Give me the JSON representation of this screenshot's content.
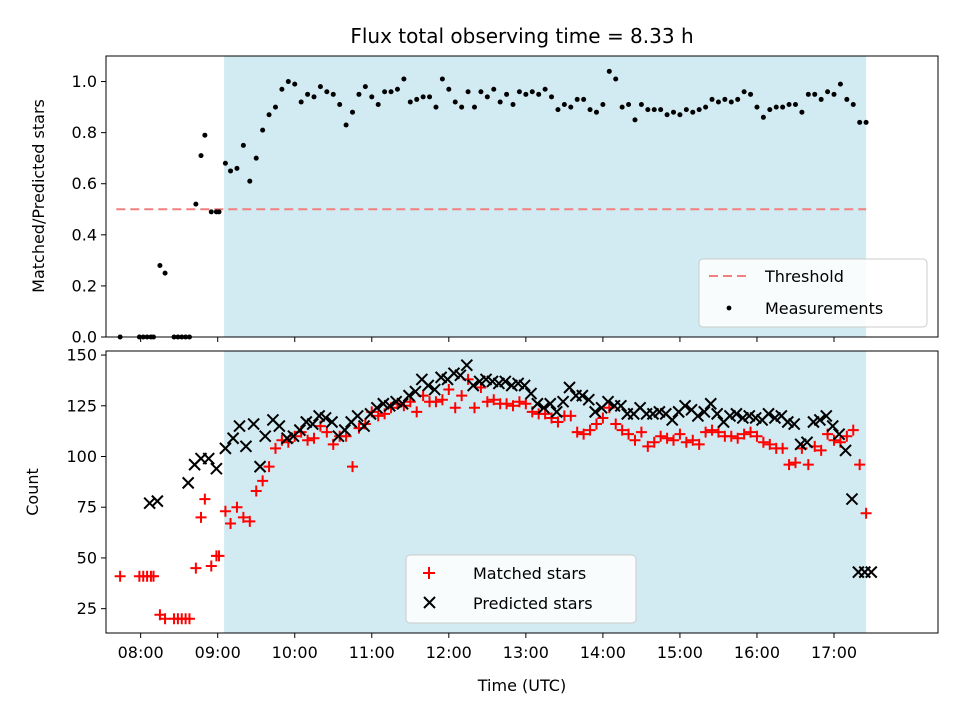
{
  "title": "Flux total observing time = 8.33 h",
  "xlabel": "Time (UTC)",
  "chart_data": [
    {
      "type": "scatter",
      "ylabel": "Matched/Predicted stars",
      "xlim": [
        "07:33",
        "18:21"
      ],
      "ylim": [
        0,
        1.1
      ],
      "yticks": [
        0.0,
        0.2,
        0.4,
        0.6,
        0.8,
        1.0
      ],
      "ytick_labels": [
        "0.0",
        "0.2",
        "0.4",
        "0.6",
        "0.8",
        "1.0"
      ],
      "grid": false,
      "legend_position": "lower right",
      "observing_window": {
        "start": "09:05",
        "end": "17:25",
        "color": "#add8e6"
      },
      "threshold": {
        "name": "Threshold",
        "value": 0.5,
        "x_range": [
          "07:41",
          "17:25"
        ],
        "color": "#f08080",
        "style": "dashed"
      },
      "series": [
        {
          "name": "Measurements",
          "color": "#000000",
          "marker": "dot",
          "x": [
            "07:44",
            "07:59",
            "08:02",
            "08:05",
            "08:08",
            "08:10",
            "08:15",
            "08:19",
            "08:26",
            "08:29",
            "08:32",
            "08:35",
            "08:38",
            "08:43",
            "08:47",
            "08:50",
            "08:55",
            "08:59",
            "09:01",
            "09:06",
            "09:10",
            "09:15",
            "09:20",
            "09:25",
            "09:30",
            "09:35",
            "09:40",
            "09:45",
            "09:50",
            "09:55",
            "10:00",
            "10:05",
            "10:10",
            "10:15",
            "10:20",
            "10:25",
            "10:30",
            "10:35",
            "10:40",
            "10:45",
            "10:50",
            "10:55",
            "11:00",
            "11:05",
            "11:10",
            "11:15",
            "11:20",
            "11:25",
            "11:30",
            "11:35",
            "11:40",
            "11:45",
            "11:50",
            "11:55",
            "12:00",
            "12:05",
            "12:10",
            "12:15",
            "12:20",
            "12:25",
            "12:30",
            "12:35",
            "12:40",
            "12:45",
            "12:50",
            "12:55",
            "13:00",
            "13:05",
            "13:10",
            "13:15",
            "13:20",
            "13:25",
            "13:30",
            "13:35",
            "13:40",
            "13:45",
            "13:50",
            "13:55",
            "14:00",
            "14:05",
            "14:10",
            "14:15",
            "14:20",
            "14:25",
            "14:30",
            "14:35",
            "14:40",
            "14:45",
            "14:50",
            "14:55",
            "15:00",
            "15:05",
            "15:10",
            "15:15",
            "15:20",
            "15:25",
            "15:30",
            "15:35",
            "15:40",
            "15:45",
            "15:50",
            "15:55",
            "16:00",
            "16:05",
            "16:10",
            "16:15",
            "16:20",
            "16:25",
            "16:30",
            "16:35",
            "16:40",
            "16:45",
            "16:50",
            "16:55",
            "17:00",
            "17:05",
            "17:10",
            "17:15",
            "17:20",
            "17:25"
          ],
          "y": [
            0.0,
            0.0,
            0.0,
            0.0,
            0.0,
            0.0,
            0.28,
            0.25,
            0.0,
            0.0,
            0.0,
            0.0,
            0.0,
            0.52,
            0.71,
            0.79,
            0.49,
            0.49,
            0.49,
            0.68,
            0.65,
            0.66,
            0.75,
            0.61,
            0.7,
            0.81,
            0.87,
            0.9,
            0.97,
            1.0,
            0.99,
            0.92,
            0.95,
            0.94,
            0.98,
            0.96,
            0.95,
            0.91,
            0.83,
            0.88,
            0.95,
            0.98,
            0.94,
            0.91,
            0.96,
            0.96,
            0.97,
            1.01,
            0.92,
            0.93,
            0.94,
            0.94,
            0.9,
            1.01,
            0.97,
            0.92,
            0.9,
            0.96,
            0.9,
            0.96,
            0.94,
            0.97,
            0.92,
            0.95,
            0.91,
            0.96,
            0.95,
            0.96,
            0.95,
            0.97,
            0.94,
            0.89,
            0.91,
            0.9,
            0.93,
            0.93,
            0.89,
            0.88,
            0.91,
            1.04,
            1.01,
            0.9,
            0.91,
            0.85,
            0.91,
            0.89,
            0.89,
            0.89,
            0.87,
            0.88,
            0.87,
            0.89,
            0.88,
            0.89,
            0.9,
            0.93,
            0.92,
            0.93,
            0.92,
            0.93,
            0.96,
            0.95,
            0.9,
            0.86,
            0.89,
            0.9,
            0.9,
            0.91,
            0.91,
            0.88,
            0.95,
            0.95,
            0.93,
            0.96,
            0.95,
            0.99,
            0.93,
            0.91,
            0.84,
            0.84
          ]
        }
      ]
    },
    {
      "type": "scatter",
      "ylabel": "Count",
      "xlim": [
        "07:33",
        "18:21"
      ],
      "ylim": [
        13,
        152
      ],
      "yticks": [
        25,
        50,
        75,
        100,
        125,
        150
      ],
      "ytick_labels": [
        "25",
        "50",
        "75",
        "100",
        "125",
        "150"
      ],
      "xticks": [
        "08:00",
        "09:00",
        "10:00",
        "11:00",
        "12:00",
        "13:00",
        "14:00",
        "15:00",
        "16:00",
        "17:00"
      ],
      "grid": false,
      "legend_position": "lower center",
      "observing_window": {
        "start": "09:05",
        "end": "17:25",
        "color": "#add8e6"
      },
      "series": [
        {
          "name": "Matched stars",
          "color": "#ff0000",
          "marker": "plus",
          "x": [
            "07:44",
            "07:59",
            "08:02",
            "08:05",
            "08:08",
            "08:10",
            "08:15",
            "08:19",
            "08:26",
            "08:29",
            "08:32",
            "08:35",
            "08:38",
            "08:43",
            "08:47",
            "08:50",
            "08:55",
            "08:59",
            "09:01",
            "09:06",
            "09:10",
            "09:15",
            "09:20",
            "09:25",
            "09:30",
            "09:35",
            "09:40",
            "09:45",
            "09:50",
            "09:55",
            "10:00",
            "10:05",
            "10:10",
            "10:15",
            "10:20",
            "10:25",
            "10:30",
            "10:35",
            "10:40",
            "10:45",
            "10:50",
            "10:55",
            "11:00",
            "11:05",
            "11:10",
            "11:15",
            "11:20",
            "11:25",
            "11:30",
            "11:35",
            "11:40",
            "11:45",
            "11:50",
            "11:55",
            "12:00",
            "12:05",
            "12:10",
            "12:15",
            "12:20",
            "12:25",
            "12:30",
            "12:35",
            "12:40",
            "12:45",
            "12:50",
            "12:55",
            "13:00",
            "13:05",
            "13:10",
            "13:15",
            "13:20",
            "13:25",
            "13:30",
            "13:35",
            "13:40",
            "13:45",
            "13:50",
            "13:55",
            "14:00",
            "14:05",
            "14:10",
            "14:15",
            "14:20",
            "14:25",
            "14:30",
            "14:35",
            "14:40",
            "14:45",
            "14:50",
            "14:55",
            "15:00",
            "15:05",
            "15:10",
            "15:15",
            "15:20",
            "15:25",
            "15:30",
            "15:35",
            "15:40",
            "15:45",
            "15:50",
            "15:55",
            "16:00",
            "16:05",
            "16:10",
            "16:15",
            "16:20",
            "16:25",
            "16:30",
            "16:35",
            "16:40",
            "16:45",
            "16:50",
            "16:55",
            "17:00",
            "17:05",
            "17:10",
            "17:15",
            "17:20",
            "17:25"
          ],
          "y": [
            41,
            41,
            41,
            41,
            41,
            41,
            22,
            20,
            20,
            20,
            20,
            20,
            20,
            45,
            70,
            79,
            46,
            51,
            51,
            73,
            67,
            75,
            70,
            68,
            83,
            88,
            95,
            104,
            108,
            107,
            110,
            112,
            108,
            109,
            115,
            112,
            106,
            110,
            110,
            95,
            114,
            116,
            122,
            120,
            121,
            124,
            126,
            125,
            127,
            122,
            130,
            127,
            127,
            128,
            133,
            124,
            130,
            138,
            124,
            134,
            127,
            128,
            126,
            126,
            125,
            127,
            126,
            122,
            121,
            121,
            119,
            117,
            120,
            120,
            112,
            111,
            113,
            116,
            119,
            124,
            116,
            113,
            111,
            108,
            112,
            105,
            107,
            110,
            109,
            108,
            111,
            107,
            108,
            106,
            112,
            113,
            112,
            110,
            110,
            109,
            111,
            112,
            110,
            107,
            106,
            104,
            104,
            96,
            97,
            104,
            96,
            105,
            103,
            111,
            108,
            107,
            110,
            113,
            96,
            72
          ]
        },
        {
          "name": "Predicted stars",
          "color": "#000000",
          "marker": "x",
          "x": [
            "08:07",
            "08:13",
            "08:37",
            "08:42",
            "08:47",
            "08:53",
            "08:59",
            "09:06",
            "09:12",
            "09:17",
            "09:22",
            "09:28",
            "09:33",
            "09:37",
            "09:43",
            "09:48",
            "09:54",
            "09:59",
            "10:04",
            "10:09",
            "10:14",
            "10:19",
            "10:24",
            "10:29",
            "10:34",
            "10:39",
            "10:44",
            "10:49",
            "10:54",
            "10:59",
            "11:04",
            "11:09",
            "11:14",
            "11:19",
            "11:24",
            "11:29",
            "11:34",
            "11:39",
            "11:44",
            "11:49",
            "11:54",
            "11:59",
            "12:04",
            "12:09",
            "12:14",
            "12:19",
            "12:24",
            "12:29",
            "12:34",
            "12:39",
            "12:44",
            "12:49",
            "12:54",
            "12:59",
            "13:04",
            "13:09",
            "13:14",
            "13:19",
            "13:24",
            "13:29",
            "13:34",
            "13:39",
            "13:44",
            "13:49",
            "13:54",
            "13:59",
            "14:04",
            "14:09",
            "14:14",
            "14:19",
            "14:24",
            "14:29",
            "14:34",
            "14:39",
            "14:44",
            "14:49",
            "14:54",
            "14:59",
            "15:04",
            "15:09",
            "15:14",
            "15:19",
            "15:24",
            "15:29",
            "15:34",
            "15:39",
            "15:44",
            "15:49",
            "15:54",
            "15:59",
            "16:04",
            "16:09",
            "16:14",
            "16:19",
            "16:24",
            "16:29",
            "16:34",
            "16:39",
            "16:44",
            "16:49",
            "16:54",
            "16:59",
            "17:04",
            "17:09",
            "17:14",
            "17:19",
            "17:24",
            "17:29"
          ],
          "y": [
            77,
            78,
            87,
            96,
            99,
            99,
            94,
            104,
            109,
            115,
            105,
            116,
            95,
            110,
            118,
            115,
            109,
            110,
            113,
            117,
            116,
            120,
            119,
            117,
            110,
            113,
            117,
            120,
            115,
            121,
            124,
            126,
            125,
            127,
            126,
            130,
            132,
            138,
            135,
            133,
            139,
            138,
            141,
            140,
            145,
            135,
            137,
            138,
            137,
            136,
            137,
            135,
            136,
            135,
            131,
            126,
            124,
            126,
            122,
            127,
            134,
            130,
            130,
            128,
            122,
            124,
            127,
            125,
            125,
            121,
            121,
            124,
            121,
            121,
            122,
            121,
            118,
            122,
            125,
            123,
            120,
            122,
            126,
            121,
            117,
            120,
            121,
            119,
            120,
            119,
            118,
            121,
            119,
            120,
            117,
            116,
            106,
            107,
            117,
            118,
            120,
            115,
            111,
            103,
            79,
            43,
            43,
            43
          ]
        }
      ]
    }
  ],
  "legend_top": {
    "threshold_label": "Threshold",
    "measurements_label": "Measurements"
  },
  "legend_bottom": {
    "matched_label": "Matched stars",
    "predicted_label": "Predicted stars"
  }
}
